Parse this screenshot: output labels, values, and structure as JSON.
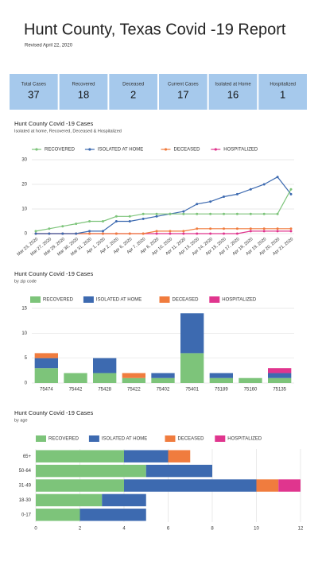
{
  "header": {
    "title": "Hunt County, Texas Covid -19 Report",
    "subtitle": "Revised April 22, 2020"
  },
  "stats": [
    {
      "label": "Total Cases",
      "value": 37
    },
    {
      "label": "Recovered",
      "value": 18
    },
    {
      "label": "Deceased",
      "value": 2
    },
    {
      "label": "Current Cases",
      "value": 17
    },
    {
      "label": "Isolated at Home",
      "value": 16
    },
    {
      "label": "Hospitalized",
      "value": 1
    }
  ],
  "chart_data": [
    {
      "type": "line",
      "title": "Hunt County Covid -19 Cases",
      "subtitle": "Isolated at home, Recovered, Deceased & Hospitalized",
      "categories": [
        "Mar 23, 2020",
        "Mar 27, 2020",
        "Mar 29, 2020",
        "Mar 30, 2020",
        "Mar 31, 2020",
        "Apr 1, 2020",
        "Apr 2, 2020",
        "Apr 6, 2020",
        "Apr 7, 2020",
        "Apr 8, 2020",
        "Apr 10, 2020",
        "Apr 11, 2020",
        "Apr 13, 2020",
        "Apr 14, 2020",
        "Apr 15, 2020",
        "Apr 17, 2020",
        "Apr 18, 2020",
        "Apr 19, 2020",
        "Apr 20, 2020",
        "Apr 21, 2020"
      ],
      "series": [
        {
          "name": "RECOVERED",
          "color": "#7dc47a",
          "values": [
            1,
            2,
            3,
            4,
            5,
            5,
            7,
            7,
            8,
            8,
            8,
            8,
            8,
            8,
            8,
            8,
            8,
            8,
            8,
            18
          ]
        },
        {
          "name": "ISOLATED AT HOME",
          "color": "#3d6ab0",
          "values": [
            0,
            0,
            0,
            0,
            1,
            1,
            5,
            5,
            6,
            7,
            8,
            9,
            12,
            13,
            15,
            16,
            18,
            20,
            23,
            16
          ]
        },
        {
          "name": "DECEASED",
          "color": "#f07c3e",
          "values": [
            0,
            0,
            0,
            0,
            0,
            0,
            0,
            0,
            0,
            1,
            1,
            1,
            2,
            2,
            2,
            2,
            2,
            2,
            2,
            2
          ]
        },
        {
          "name": "HOSPITALIZED",
          "color": "#e0358e",
          "values": [
            0,
            0,
            0,
            0,
            0,
            0,
            0,
            0,
            0,
            0,
            0,
            0,
            0,
            0,
            0,
            0,
            1,
            1,
            1,
            1
          ]
        }
      ],
      "ylim": [
        0,
        30
      ],
      "yticks": [
        0,
        10,
        20,
        30
      ],
      "grid": true
    },
    {
      "type": "stacked_bar",
      "title": "Hunt County Covid -19 Cases",
      "subtitle": "by zip code",
      "categories": [
        "75474",
        "75442",
        "75428",
        "75422",
        "75402",
        "75401",
        "75189",
        "75160",
        "75135"
      ],
      "series": [
        {
          "name": "RECOVERED",
          "color": "#7dc47a",
          "values": [
            3,
            2,
            2,
            1,
            1,
            6,
            1,
            1,
            1
          ]
        },
        {
          "name": "ISOLATED AT HOME",
          "color": "#3d6ab0",
          "values": [
            2,
            0,
            3,
            0,
            1,
            8,
            1,
            0,
            1
          ]
        },
        {
          "name": "DECEASED",
          "color": "#f07c3e",
          "values": [
            1,
            0,
            0,
            1,
            0,
            0,
            0,
            0,
            0
          ]
        },
        {
          "name": "HOSPITALIZED",
          "color": "#e0358e",
          "values": [
            0,
            0,
            0,
            0,
            0,
            0,
            0,
            0,
            1
          ]
        }
      ],
      "ylim": [
        0,
        15
      ],
      "yticks": [
        0,
        5,
        10,
        15
      ],
      "grid": true
    },
    {
      "type": "stacked_hbar",
      "title": "Hunt County Covid -19 Cases",
      "subtitle": "by age",
      "categories": [
        "65+",
        "50-64",
        "31-49",
        "18-30",
        "0-17"
      ],
      "series": [
        {
          "name": "RECOVERED",
          "color": "#7dc47a",
          "values": [
            4,
            5,
            4,
            3,
            2
          ]
        },
        {
          "name": "ISOLATED AT HOME",
          "color": "#3d6ab0",
          "values": [
            2,
            3,
            6,
            2,
            3
          ]
        },
        {
          "name": "DECEASED",
          "color": "#f07c3e",
          "values": [
            1,
            0,
            1,
            0,
            0
          ]
        },
        {
          "name": "HOSPITALIZED",
          "color": "#e0358e",
          "values": [
            0,
            0,
            1,
            0,
            0
          ]
        }
      ],
      "xlim": [
        0,
        12
      ],
      "xticks": [
        0,
        2,
        4,
        6,
        8,
        10,
        12
      ],
      "grid": true
    }
  ]
}
